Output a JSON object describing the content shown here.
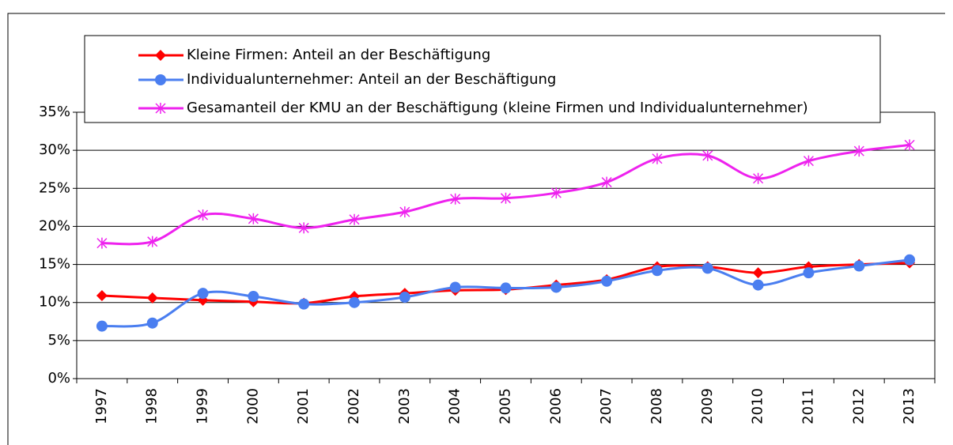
{
  "chart_data": {
    "type": "line",
    "categories": [
      "1997",
      "1998",
      "1999",
      "2000",
      "2001",
      "2002",
      "2003",
      "2004",
      "2005",
      "2006",
      "2007",
      "2008",
      "2009",
      "2010",
      "2011",
      "2012",
      "2013"
    ],
    "series": [
      {
        "name": "Kleine Firmen: Anteil an der Beschäftigung",
        "color": "#ff0000",
        "marker": "diamond",
        "values": [
          10.9,
          10.6,
          10.3,
          10.1,
          9.9,
          10.8,
          11.2,
          11.6,
          11.7,
          12.3,
          13.0,
          14.7,
          14.7,
          13.9,
          14.7,
          15.0,
          15.2
        ]
      },
      {
        "name": "Individualunternehmer: Anteil an der Beschäftigung",
        "color": "#4a7ef0",
        "marker": "circle",
        "values": [
          6.9,
          7.3,
          11.2,
          10.8,
          9.8,
          10.0,
          10.7,
          12.0,
          11.9,
          12.0,
          12.8,
          14.2,
          14.5,
          12.3,
          13.9,
          14.8,
          15.6
        ]
      },
      {
        "name": "Gesamanteil der KMU an der Beschäftigung (kleine Firmen und Individualunternehmer)",
        "color": "#ee22ee",
        "marker": "asterisk",
        "values": [
          17.8,
          18.0,
          21.5,
          21.0,
          19.8,
          20.9,
          21.9,
          23.6,
          23.7,
          24.4,
          25.8,
          28.9,
          29.3,
          26.3,
          28.6,
          29.9,
          30.7
        ]
      }
    ],
    "ylim": [
      0,
      35
    ],
    "yticks": [
      {
        "value": 0,
        "label": "0%"
      },
      {
        "value": 5,
        "label": "5%"
      },
      {
        "value": 10,
        "label": "10%"
      },
      {
        "value": 15,
        "label": "15%"
      },
      {
        "value": 20,
        "label": "20%"
      },
      {
        "value": 25,
        "label": "25%"
      },
      {
        "value": 30,
        "label": "30%"
      },
      {
        "value": 35,
        "label": "35%"
      }
    ],
    "grid": true,
    "smooth": true
  }
}
